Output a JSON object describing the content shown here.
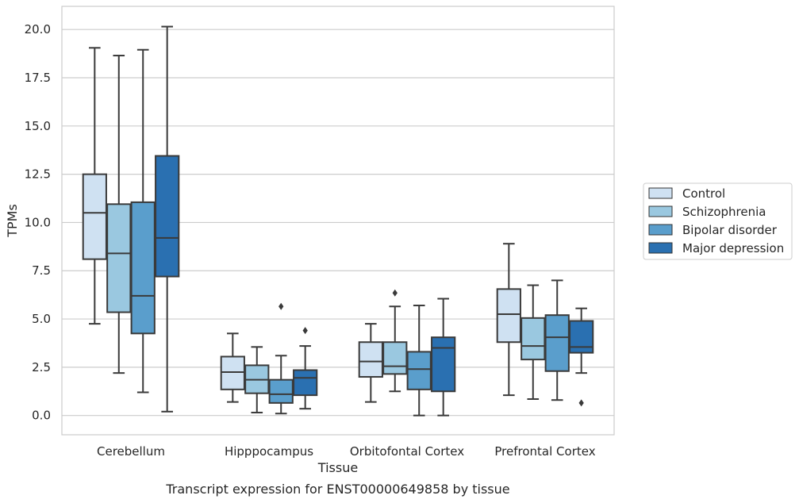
{
  "chart_data": {
    "type": "box",
    "caption": "Transcript expression for ENST00000649858 by tissue",
    "xlabel": "Tissue",
    "ylabel": "TPMs",
    "ylim": [
      -1,
      21.2
    ],
    "yticks": [
      "0.0",
      "2.5",
      "5.0",
      "7.5",
      "10.0",
      "12.5",
      "15.0",
      "17.5",
      "20.0"
    ],
    "grid": "horizontal",
    "legend_position": "right",
    "categories": [
      "Cerebellum",
      "Hipppocampus",
      "Orbitofontal Cortex",
      "Prefrontal Cortex"
    ],
    "series": [
      {
        "name": "Control",
        "color": "#cfe1f2",
        "boxes": [
          {
            "whislo": 4.75,
            "q1": 8.1,
            "med": 10.5,
            "q3": 12.5,
            "whishi": 19.05,
            "fliers": []
          },
          {
            "whislo": 0.7,
            "q1": 1.35,
            "med": 2.25,
            "q3": 3.05,
            "whishi": 4.25,
            "fliers": []
          },
          {
            "whislo": 0.7,
            "q1": 2.0,
            "med": 2.8,
            "q3": 3.8,
            "whishi": 4.75,
            "fliers": []
          },
          {
            "whislo": 1.05,
            "q1": 3.8,
            "med": 5.25,
            "q3": 6.55,
            "whishi": 8.9,
            "fliers": []
          }
        ]
      },
      {
        "name": "Schizophrenia",
        "color": "#9ac8e0",
        "boxes": [
          {
            "whislo": 2.2,
            "q1": 5.35,
            "med": 8.4,
            "q3": 10.95,
            "whishi": 18.65,
            "fliers": []
          },
          {
            "whislo": 0.15,
            "q1": 1.15,
            "med": 1.85,
            "q3": 2.6,
            "whishi": 3.55,
            "fliers": []
          },
          {
            "whislo": 1.25,
            "q1": 2.15,
            "med": 2.55,
            "q3": 3.8,
            "whishi": 5.65,
            "fliers": [
              6.35
            ]
          },
          {
            "whislo": 0.85,
            "q1": 2.9,
            "med": 3.6,
            "q3": 5.05,
            "whishi": 6.75,
            "fliers": []
          }
        ]
      },
      {
        "name": "Bipolar disorder",
        "color": "#5a9ecc",
        "boxes": [
          {
            "whislo": 1.2,
            "q1": 4.25,
            "med": 6.2,
            "q3": 11.05,
            "whishi": 18.95,
            "fliers": []
          },
          {
            "whislo": 0.1,
            "q1": 0.65,
            "med": 1.1,
            "q3": 1.85,
            "whishi": 3.1,
            "fliers": [
              5.65
            ]
          },
          {
            "whislo": 0.0,
            "q1": 1.35,
            "med": 2.4,
            "q3": 3.3,
            "whishi": 5.7,
            "fliers": []
          },
          {
            "whislo": 0.8,
            "q1": 2.3,
            "med": 4.05,
            "q3": 5.2,
            "whishi": 7.0,
            "fliers": []
          }
        ]
      },
      {
        "name": "Major depression",
        "color": "#2a70b1",
        "boxes": [
          {
            "whislo": 0.2,
            "q1": 7.2,
            "med": 9.2,
            "q3": 13.45,
            "whishi": 20.15,
            "fliers": []
          },
          {
            "whislo": 0.35,
            "q1": 1.05,
            "med": 1.95,
            "q3": 2.35,
            "whishi": 3.6,
            "fliers": [
              4.4
            ]
          },
          {
            "whislo": 0.0,
            "q1": 1.25,
            "med": 3.5,
            "q3": 4.05,
            "whishi": 6.05,
            "fliers": []
          },
          {
            "whislo": 2.2,
            "q1": 3.25,
            "med": 3.55,
            "q3": 4.9,
            "whishi": 5.55,
            "fliers": [
              0.65
            ]
          }
        ]
      }
    ]
  }
}
